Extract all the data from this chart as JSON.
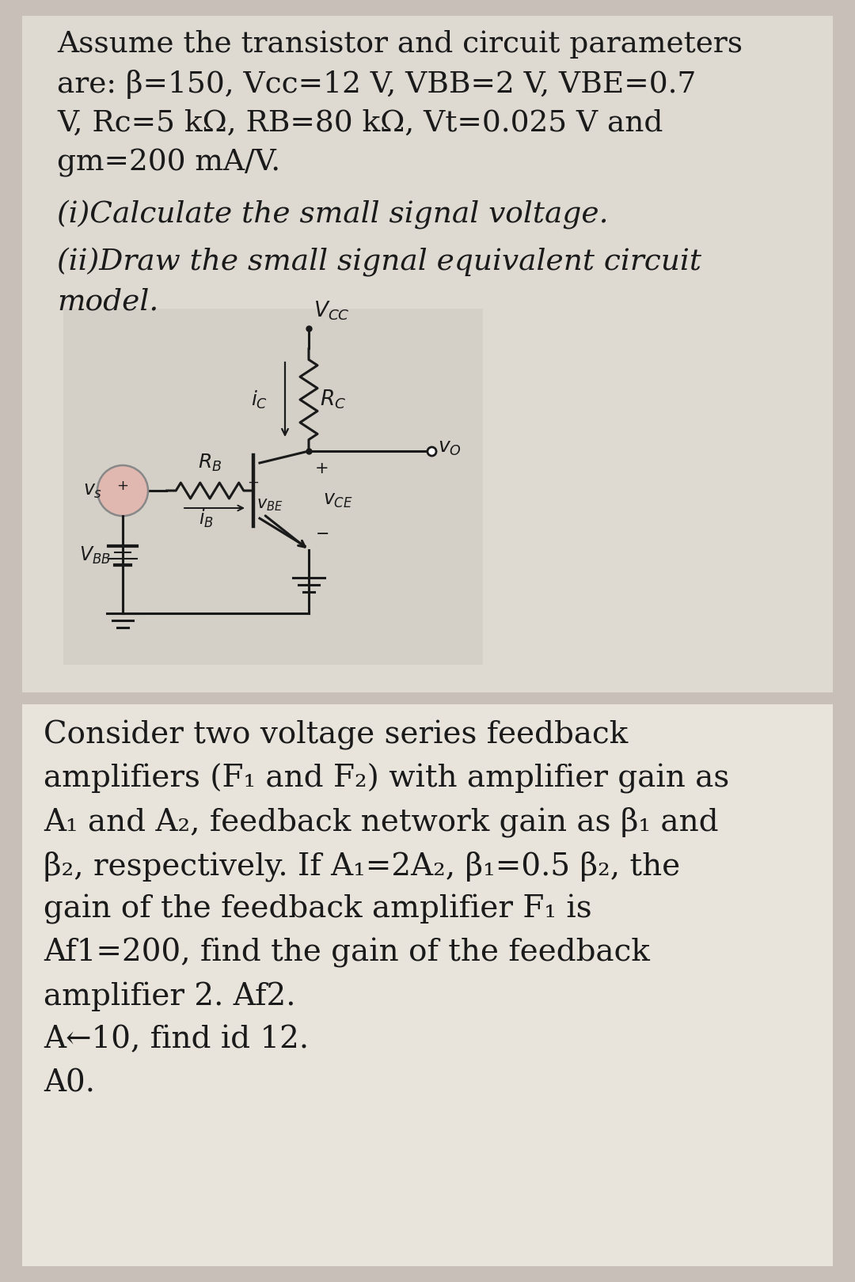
{
  "bg_color": "#c8c0b8",
  "panel1_bg": "#dedad2",
  "panel2_bg": "#e8e4dc",
  "circuit_bg": "#d4d0c8",
  "text_color": "#1a1a1a",
  "title_text1": "Assume the transistor and circuit parameters",
  "title_text2": "are: β=150, Vcc=12 V, VBB=2 V, VBE=0.7",
  "title_text3": "V, Rc=5 kΩ, RB=80 kΩ, Vt=0.025 V and",
  "title_text4": "gm=200 mA/V.",
  "q1_text": "(i)Calculate the small signal voltage.",
  "q2_text1": "(ii)Draw the small signal equivalent circuit",
  "q2_text2": "model.",
  "p2_text1": "Consider two voltage series feedback",
  "p2_text2": "amplifiers (F₁ and F₂) with amplifier gain as",
  "p2_text3": "A₁ and A₂, feedback network gain as β₁ and",
  "p2_text4": "β₂, respectively. If A₁=2A₂, β₁=0.5 β₂, the",
  "p2_text5": "gain of the feedback amplifier F₁ is",
  "p2_text6": "Af1=200, find the gain of the feedback",
  "p2_text7": "amplifier 2. Af2.",
  "p2_text8": "A←10, find id 12.",
  "p2_text9": "A0."
}
